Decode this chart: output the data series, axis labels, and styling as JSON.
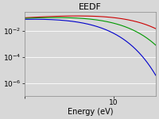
{
  "title": "EEDF",
  "xlabel": "Energy (eV)",
  "xlim": [
    1.0,
    30.0
  ],
  "ylim": [
    1e-07,
    0.3
  ],
  "background_color": "#d8d8d8",
  "grid_color": "#ffffff",
  "curves": [
    {
      "color": "#cc0000",
      "A": 0.12,
      "param": 8.0,
      "type": "maxwellian"
    },
    {
      "color": "#009900",
      "A": 0.12,
      "param": 4.5,
      "type": "maxwellian"
    },
    {
      "color": "#0000cc",
      "A": 0.12,
      "param": 2.5,
      "type": "maxwellian"
    }
  ],
  "title_fontsize": 8,
  "label_fontsize": 7,
  "tick_fontsize": 6.5
}
